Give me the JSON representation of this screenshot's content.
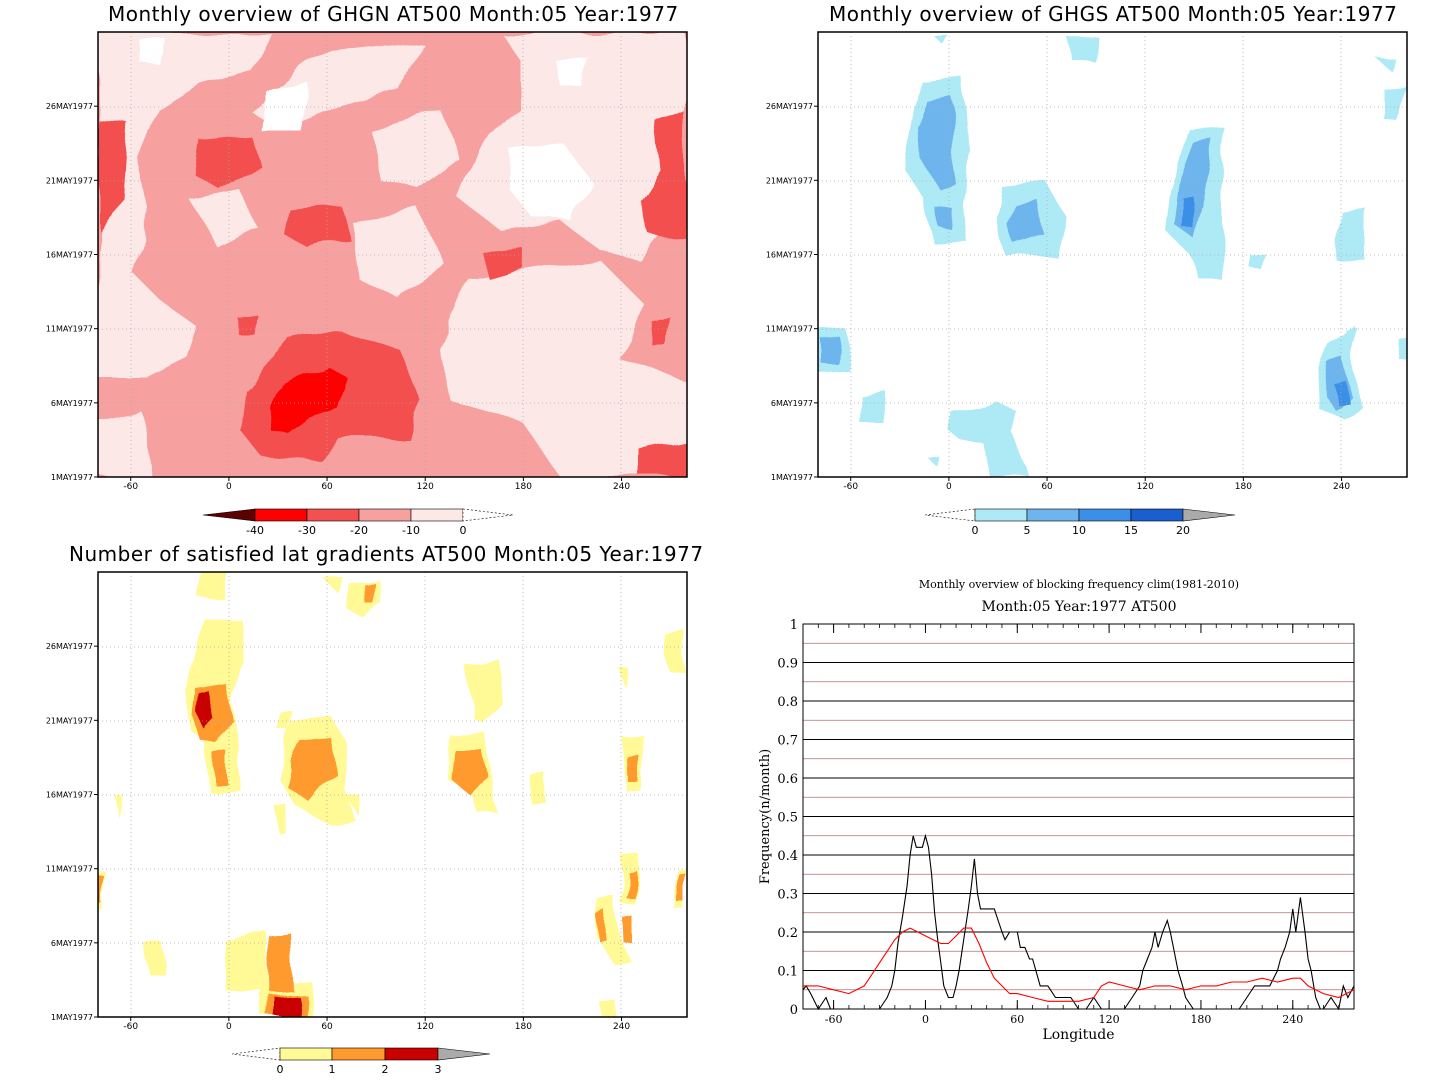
{
  "panels": {
    "ghgn": {
      "title": "Monthly overview of GHGN AT500 Month:05 Year:1977",
      "colorbar_labels": [
        "-40",
        "-30",
        "-20",
        "-10",
        "0"
      ],
      "colors": [
        "#5c0000",
        "#ff0000",
        "#f35050",
        "#f7a0a0",
        "#fde8e8"
      ]
    },
    "ghgs": {
      "title": "Monthly overview of GHGS AT500 Month:05 Year:1977",
      "colorbar_labels": [
        "0",
        "5",
        "10",
        "15",
        "20"
      ],
      "colors": [
        "#aeeaf5",
        "#6eb5ee",
        "#3b8fe6",
        "#1a5fd0",
        "#aaaaaa"
      ]
    },
    "lat": {
      "title": "Number of satisfied lat gradients AT500 Month:05 Year:1977",
      "colorbar_labels": [
        "0",
        "1",
        "2",
        "3"
      ],
      "colors": [
        "#fffa96",
        "#ff9a2e",
        "#c80000",
        "#aaaaaa"
      ]
    },
    "freq": {
      "title": "Monthly overview of blocking frequency clim(1981-2010)",
      "subtitle": "Month:05 Year:1977  AT500"
    }
  },
  "axes": {
    "x_ticks": [
      "-60",
      "0",
      "60",
      "120",
      "180",
      "240"
    ],
    "y_ticks": [
      "1MAY1977",
      "6MAY1977",
      "11MAY1977",
      "16MAY1977",
      "21MAY1977",
      "26MAY1977"
    ]
  },
  "chart_data": [
    {
      "type": "heatmap",
      "title": "Monthly overview of GHGN AT500 Month:05 Year:1977",
      "x_ticks": [
        -60,
        0,
        60,
        120,
        180,
        240
      ],
      "y_ticks": [
        "1MAY1977",
        "6MAY1977",
        "11MAY1977",
        "16MAY1977",
        "21MAY1977",
        "26MAY1977"
      ],
      "colorbar": [
        -40,
        -30,
        -20,
        -10,
        0
      ]
    },
    {
      "type": "heatmap",
      "title": "Monthly overview of GHGS AT500 Month:05 Year:1977",
      "x_ticks": [
        -60,
        0,
        60,
        120,
        180,
        240
      ],
      "y_ticks": [
        "1MAY1977",
        "6MAY1977",
        "11MAY1977",
        "16MAY1977",
        "21MAY1977",
        "26MAY1977"
      ],
      "colorbar": [
        0,
        5,
        10,
        15,
        20
      ]
    },
    {
      "type": "heatmap",
      "title": "Number of satisfied lat gradients AT500 Month:05 Year:1977",
      "x_ticks": [
        -60,
        0,
        60,
        120,
        180,
        240
      ],
      "y_ticks": [
        "1MAY1977",
        "6MAY1977",
        "11MAY1977",
        "16MAY1977",
        "21MAY1977",
        "26MAY1977"
      ],
      "colorbar": [
        0,
        1,
        2,
        3
      ]
    },
    {
      "type": "line",
      "title": "Monthly overview of blocking frequency clim(1981-2010)",
      "subtitle": "Month:05 Year:1977  AT500",
      "xlabel": "Longitude",
      "ylabel": "Frequency(n/month)",
      "xlim": [
        -80,
        280
      ],
      "ylim": [
        0,
        1
      ],
      "x_ticks": [
        -60,
        0,
        60,
        120,
        180,
        240
      ],
      "y_ticks": [
        0,
        0.1,
        0.2,
        0.3,
        0.4,
        0.5,
        0.6,
        0.7,
        0.8,
        0.9,
        1
      ],
      "series": [
        {
          "color": "#000000",
          "x": [
            -80,
            -78,
            -75,
            -70,
            -65,
            -62,
            -58,
            -55,
            -50,
            -45,
            -40,
            -35,
            -30,
            -25,
            -22,
            -20,
            -18,
            -15,
            -12,
            -10,
            -8,
            -6,
            -4,
            -2,
            0,
            2,
            4,
            6,
            8,
            10,
            12,
            15,
            18,
            20,
            22,
            25,
            28,
            30,
            32,
            34,
            36,
            38,
            40,
            45,
            50,
            52,
            55,
            58,
            60,
            62,
            65,
            68,
            70,
            75,
            80,
            85,
            90,
            95,
            100,
            105,
            110,
            115,
            120,
            125,
            130,
            135,
            140,
            142,
            145,
            148,
            150,
            152,
            155,
            158,
            160,
            162,
            165,
            168,
            170,
            175,
            180,
            185,
            190,
            195,
            200,
            205,
            210,
            215,
            220,
            225,
            230,
            232,
            235,
            238,
            240,
            242,
            245,
            248,
            250,
            252,
            255,
            258,
            260,
            265,
            270,
            273,
            276,
            280
          ],
          "y": [
            0.05,
            0.06,
            0.04,
            0.0,
            0.03,
            0.0,
            0.0,
            0.0,
            0.0,
            0.0,
            0.0,
            0.0,
            0.0,
            0.03,
            0.06,
            0.1,
            0.17,
            0.24,
            0.32,
            0.4,
            0.45,
            0.42,
            0.42,
            0.42,
            0.45,
            0.42,
            0.35,
            0.25,
            0.18,
            0.12,
            0.06,
            0.03,
            0.03,
            0.06,
            0.1,
            0.18,
            0.26,
            0.32,
            0.39,
            0.3,
            0.26,
            0.26,
            0.26,
            0.26,
            0.2,
            0.18,
            0.2,
            0.2,
            0.2,
            0.16,
            0.16,
            0.13,
            0.13,
            0.06,
            0.06,
            0.03,
            0.03,
            0.03,
            0.0,
            0.0,
            0.03,
            0.0,
            0.0,
            0.0,
            0.0,
            0.03,
            0.06,
            0.1,
            0.13,
            0.16,
            0.2,
            0.16,
            0.2,
            0.23,
            0.2,
            0.16,
            0.1,
            0.06,
            0.03,
            0.0,
            0.0,
            0.0,
            0.0,
            0.0,
            0.0,
            0.0,
            0.03,
            0.06,
            0.06,
            0.06,
            0.1,
            0.13,
            0.16,
            0.2,
            0.26,
            0.2,
            0.29,
            0.2,
            0.13,
            0.1,
            0.03,
            0.0,
            0.0,
            0.03,
            0.0,
            0.06,
            0.03,
            0.06
          ]
        },
        {
          "color": "#ff0000",
          "x": [
            -80,
            -70,
            -60,
            -50,
            -45,
            -40,
            -35,
            -30,
            -25,
            -20,
            -15,
            -10,
            -5,
            0,
            5,
            10,
            15,
            20,
            25,
            30,
            35,
            40,
            45,
            50,
            55,
            60,
            70,
            80,
            90,
            100,
            110,
            115,
            120,
            130,
            140,
            150,
            160,
            170,
            180,
            190,
            200,
            210,
            220,
            230,
            240,
            245,
            250,
            260,
            270,
            280
          ],
          "y": [
            0.06,
            0.06,
            0.05,
            0.04,
            0.05,
            0.06,
            0.09,
            0.12,
            0.15,
            0.18,
            0.2,
            0.21,
            0.2,
            0.19,
            0.18,
            0.17,
            0.17,
            0.19,
            0.21,
            0.21,
            0.17,
            0.12,
            0.08,
            0.06,
            0.04,
            0.04,
            0.03,
            0.02,
            0.02,
            0.02,
            0.03,
            0.06,
            0.07,
            0.06,
            0.05,
            0.06,
            0.06,
            0.05,
            0.06,
            0.06,
            0.07,
            0.07,
            0.08,
            0.07,
            0.08,
            0.08,
            0.06,
            0.04,
            0.03,
            0.05
          ]
        }
      ]
    }
  ]
}
